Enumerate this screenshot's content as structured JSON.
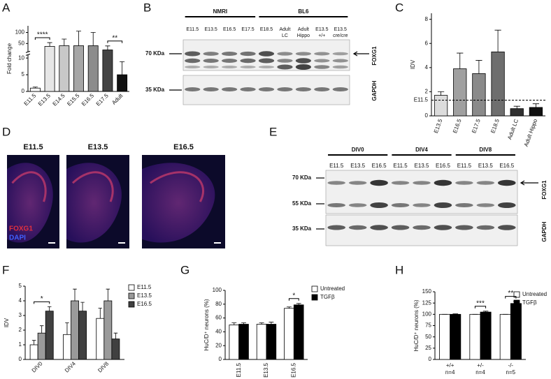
{
  "chart_data": [
    {
      "panel": "A",
      "type": "bar",
      "ylabel": "Fold change",
      "categories": [
        "E11.5",
        "E13.5",
        "E14.5",
        "E15.5",
        "E16.5",
        "E17.5",
        "Adult"
      ],
      "values": [
        1,
        37,
        40,
        40,
        40,
        21,
        5
      ],
      "errors": [
        0.3,
        17,
        30,
        66,
        60,
        18,
        3.9
      ],
      "colors": [
        "#ffffff",
        "#e6e6e6",
        "#c8c8c8",
        "#a6a6a6",
        "#8c8c8c",
        "#444444",
        "#111111"
      ],
      "ylim": [
        0,
        130
      ],
      "axis_break": [
        11,
        12
      ],
      "yticks": [
        0,
        5,
        10,
        50,
        100
      ],
      "significance": [
        {
          "label": "****",
          "categories": [
            0,
            1
          ]
        },
        {
          "label": "**",
          "categories": [
            5,
            6
          ]
        }
      ]
    },
    {
      "panel": "C",
      "type": "bar",
      "ylabel": "IDV",
      "categories": [
        "E13.5",
        "E16.5",
        "E17.5",
        "E18.5",
        "Adult LC",
        "Adult Hippo"
      ],
      "values": [
        1.7,
        3.9,
        3.5,
        5.3,
        0.6,
        0.7
      ],
      "errors": [
        0.3,
        1.3,
        1.1,
        1.8,
        0.2,
        0.3
      ],
      "colors": [
        "#dcdcdc",
        "#a0a0a0",
        "#8a8a8a",
        "#6e6e6e",
        "#303030",
        "#111111"
      ],
      "ylim": [
        0,
        8.5
      ],
      "yticks": [
        0,
        2,
        4,
        6,
        8
      ],
      "reference": {
        "label": "E11.5",
        "value": 1.3
      }
    },
    {
      "panel": "F",
      "type": "grouped-bar",
      "ylabel": "IDV",
      "categories": [
        "DIV0",
        "DIV4",
        "DIV8"
      ],
      "series": [
        {
          "name": "E11.5",
          "color": "#ffffff",
          "values": [
            1.0,
            1.7,
            2.8
          ],
          "errors": [
            0.3,
            0.8,
            0.7
          ]
        },
        {
          "name": "E13.5",
          "color": "#9a9a9a",
          "values": [
            1.8,
            4.0,
            4.0
          ],
          "errors": [
            0.5,
            0.8,
            0.8
          ]
        },
        {
          "name": "E16.5",
          "color": "#404040",
          "values": [
            3.3,
            3.3,
            1.4
          ],
          "errors": [
            0.3,
            0.6,
            0.4
          ]
        }
      ],
      "ylim": [
        0,
        5
      ],
      "yticks": [
        0,
        1,
        2,
        3,
        4,
        5
      ],
      "significance": [
        {
          "label": "*",
          "category": 0,
          "series": [
            0,
            2
          ]
        }
      ]
    },
    {
      "panel": "G",
      "type": "grouped-bar",
      "ylabel": "HuC/D⁺ neurons (%)",
      "categories": [
        "E11.5",
        "E13.5",
        "E16.5"
      ],
      "series": [
        {
          "name": "Untreated",
          "color": "#ffffff",
          "values": [
            50,
            51,
            74
          ],
          "errors": [
            3,
            2,
            2
          ]
        },
        {
          "name": "TGFβ",
          "color": "#000000",
          "values": [
            51,
            51,
            79
          ],
          "errors": [
            2,
            3,
            2
          ]
        }
      ],
      "ylim": [
        0,
        100
      ],
      "yticks": [
        0,
        20,
        40,
        60,
        80,
        100
      ],
      "significance": [
        {
          "label": "*",
          "category": 2,
          "series": [
            0,
            1
          ]
        }
      ]
    },
    {
      "panel": "H",
      "type": "grouped-bar",
      "ylabel": "HuC/D⁺ neurons (%)",
      "categories": [
        [
          "+/+",
          "n=4"
        ],
        [
          "+/-",
          "n=4"
        ],
        [
          "-/-",
          "n=5"
        ]
      ],
      "series": [
        {
          "name": "Untreated",
          "color": "#ffffff",
          "values": [
            100,
            100,
            100
          ],
          "errors": [
            0,
            0,
            0
          ]
        },
        {
          "name": "TGFβ",
          "color": "#000000",
          "values": [
            100,
            105,
            124
          ],
          "errors": [
            1,
            2,
            5
          ]
        }
      ],
      "ylim": [
        0,
        150
      ],
      "yticks": [
        0,
        25,
        50,
        75,
        100,
        125,
        150
      ],
      "significance": [
        {
          "label": "***",
          "category": 1,
          "series": [
            0,
            1
          ]
        },
        {
          "label": "**",
          "category": 2,
          "series": [
            0,
            1
          ]
        }
      ]
    }
  ],
  "blot_b": {
    "panel": "B",
    "groups": [
      {
        "label": "NMRI",
        "lanes": [
          0,
          3
        ]
      },
      {
        "label": "BL6",
        "lanes": [
          4,
          8
        ]
      }
    ],
    "lanes": [
      [
        "E11.5"
      ],
      [
        "E13.5"
      ],
      [
        "E16.5"
      ],
      [
        "E17.5"
      ],
      [
        "E18.5"
      ],
      [
        "Adult",
        "LC"
      ],
      [
        "Adult",
        "Hippo"
      ],
      [
        "E13.5",
        "+/+"
      ],
      [
        "E13.5",
        "cre/cre"
      ]
    ],
    "markers": [
      "70 KDa",
      "35 KDa"
    ],
    "proteins": [
      "FOXG1",
      "GAPDH"
    ]
  },
  "images_d": {
    "panel": "D",
    "titles": [
      "E11.5",
      "E13.5",
      "E16.5"
    ],
    "stains": [
      "FOXG1",
      "DAPI"
    ]
  },
  "blot_e": {
    "panel": "E",
    "groups": [
      {
        "label": "DIV0",
        "lanes": [
          0,
          2
        ]
      },
      {
        "label": "DIV4",
        "lanes": [
          3,
          5
        ]
      },
      {
        "label": "DIV8",
        "lanes": [
          6,
          8
        ]
      }
    ],
    "lanes": [
      "E11.5",
      "E13.5",
      "E16.5",
      "E11.5",
      "E13.5",
      "E16.5",
      "E11.5",
      "E13.5",
      "E16.5"
    ],
    "markers": [
      "70 KDa",
      "55 KDa",
      "35 KDa"
    ],
    "proteins": [
      "FOXG1",
      "GAPDH"
    ]
  }
}
